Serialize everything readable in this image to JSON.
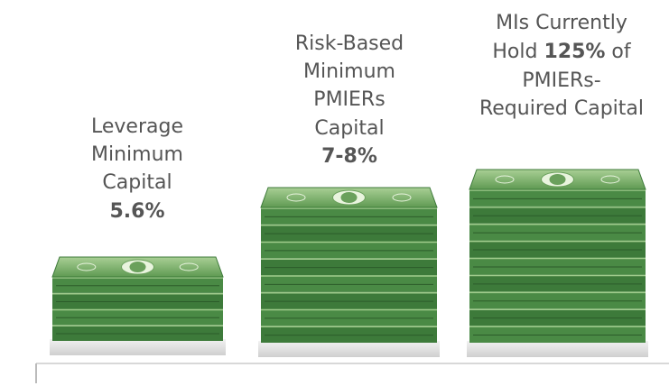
{
  "stacks": [
    {
      "lines": [
        "Leverage",
        "Minimum",
        "Capital"
      ],
      "value": "5.6%"
    },
    {
      "lines": [
        "Risk-Based",
        "Minimum",
        "PMIERs",
        "Capital"
      ],
      "value": "7-8%"
    },
    {
      "line1": "MIs Currently",
      "before": "Hold",
      "value": "125%",
      "after": "of",
      "line3": "PMIERs-",
      "line4": "Required Capital"
    }
  ]
}
